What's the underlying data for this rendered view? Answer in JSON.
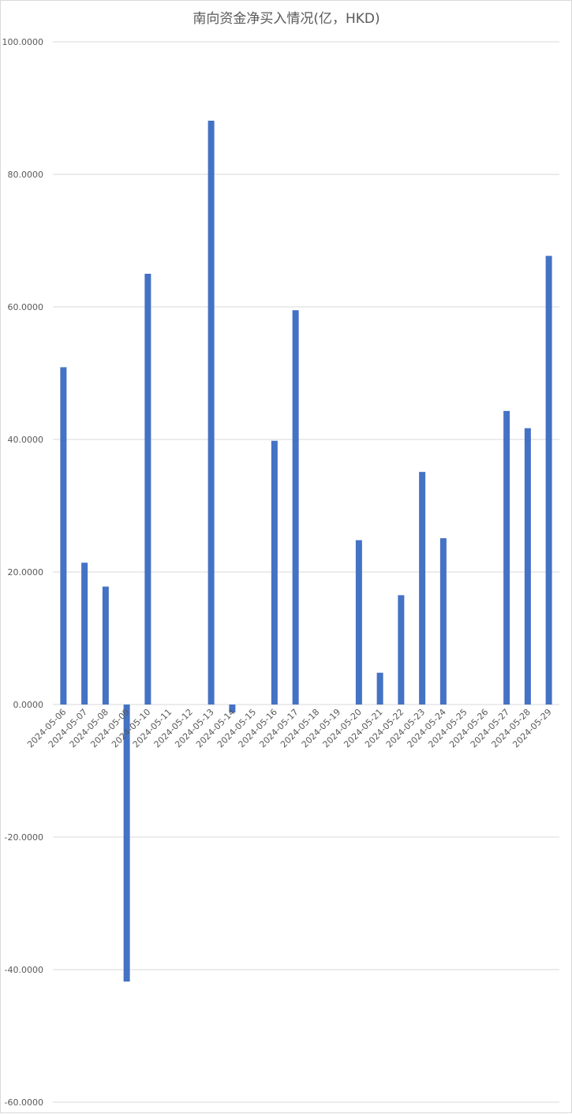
{
  "chart_data": {
    "type": "bar",
    "title": "南向资金净买入情况(亿，HKD)",
    "xlabel": "",
    "ylabel": "",
    "categories": [
      "2024-05-06",
      "2024-05-07",
      "2024-05-08",
      "2024-05-09",
      "2024-05-10",
      "2024-05-11",
      "2024-05-12",
      "2024-05-13",
      "2024-05-14",
      "2024-05-15",
      "2024-05-16",
      "2024-05-17",
      "2024-05-18",
      "2024-05-19",
      "2024-05-20",
      "2024-05-21",
      "2024-05-22",
      "2024-05-23",
      "2024-05-24",
      "2024-05-25",
      "2024-05-26",
      "2024-05-27",
      "2024-05-28",
      "2024-05-29"
    ],
    "values": [
      50.9,
      21.4,
      17.8,
      -41.8,
      65.0,
      0,
      0,
      88.1,
      -1.2,
      0,
      39.8,
      59.5,
      0,
      0,
      24.8,
      4.8,
      16.5,
      35.1,
      25.1,
      0,
      0,
      44.3,
      41.7,
      67.7
    ],
    "ylim": [
      -60,
      100
    ],
    "yticks": [
      100,
      80,
      60,
      40,
      20,
      0,
      -20,
      -40,
      -60
    ],
    "ytick_labels": [
      "100.0000",
      "80.0000",
      "60.0000",
      "40.0000",
      "20.0000",
      "0.0000",
      "-20.0000",
      "-40.0000",
      "-60.0000"
    ],
    "grid": true,
    "bar_color": "#4472C4",
    "legend": "none"
  }
}
